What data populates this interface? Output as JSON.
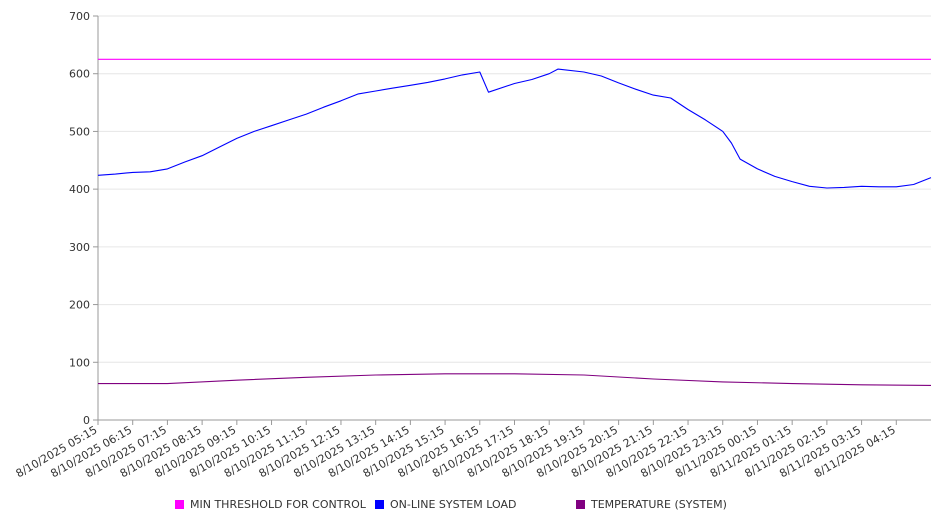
{
  "chart_data": {
    "type": "line",
    "title": "",
    "xlabel": "",
    "ylabel": "",
    "ylim": [
      0,
      700
    ],
    "y_ticks": [
      "0",
      "100",
      "200",
      "300",
      "400",
      "500",
      "600",
      "700"
    ],
    "x_tick_labels": [
      "8/10/2025 05:15",
      "8/10/2025 06:15",
      "8/10/2025 07:15",
      "8/10/2025 08:15",
      "8/10/2025 09:15",
      "8/10/2025 10:15",
      "8/10/2025 11:15",
      "8/10/2025 12:15",
      "8/10/2025 13:15",
      "8/10/2025 14:15",
      "8/10/2025 15:15",
      "8/10/2025 16:15",
      "8/10/2025 17:15",
      "8/10/2025 18:15",
      "8/10/2025 19:15",
      "8/10/2025 20:15",
      "8/10/2025 21:15",
      "8/10/2025 22:15",
      "8/10/2025 23:15",
      "8/11/2025 00:15",
      "8/11/2025 01:15",
      "8/11/2025 02:15",
      "8/11/2025 03:15",
      "8/11/2025 04:15"
    ],
    "grid": true,
    "legend_position": "bottom",
    "series": [
      {
        "name": "MIN THRESHOLD FOR CONTROL",
        "color": "#ff00ff",
        "points": [
          [
            "8/10/2025 05:15",
            625
          ],
          [
            "8/11/2025 05:15",
            625
          ]
        ]
      },
      {
        "name": "ON-LINE SYSTEM LOAD",
        "color": "#0000ff",
        "points": [
          [
            "8/10/2025 05:15",
            424
          ],
          [
            "8/10/2025 05:45",
            426
          ],
          [
            "8/10/2025 06:15",
            429
          ],
          [
            "8/10/2025 06:45",
            430
          ],
          [
            "8/10/2025 07:15",
            435
          ],
          [
            "8/10/2025 07:45",
            447
          ],
          [
            "8/10/2025 08:15",
            458
          ],
          [
            "8/10/2025 08:45",
            473
          ],
          [
            "8/10/2025 09:15",
            488
          ],
          [
            "8/10/2025 09:45",
            500
          ],
          [
            "8/10/2025 10:15",
            510
          ],
          [
            "8/10/2025 10:45",
            520
          ],
          [
            "8/10/2025 11:15",
            530
          ],
          [
            "8/10/2025 11:45",
            542
          ],
          [
            "8/10/2025 12:15",
            553
          ],
          [
            "8/10/2025 12:45",
            565
          ],
          [
            "8/10/2025 13:15",
            570
          ],
          [
            "8/10/2025 13:45",
            575
          ],
          [
            "8/10/2025 14:15",
            580
          ],
          [
            "8/10/2025 14:45",
            585
          ],
          [
            "8/10/2025 15:15",
            591
          ],
          [
            "8/10/2025 15:45",
            598
          ],
          [
            "8/10/2025 16:15",
            603
          ],
          [
            "8/10/2025 16:30",
            568
          ],
          [
            "8/10/2025 17:15",
            583
          ],
          [
            "8/10/2025 17:45",
            590
          ],
          [
            "8/10/2025 18:15",
            600
          ],
          [
            "8/10/2025 18:30",
            608
          ],
          [
            "8/10/2025 19:15",
            603
          ],
          [
            "8/10/2025 19:45",
            596
          ],
          [
            "8/10/2025 20:15",
            584
          ],
          [
            "8/10/2025 20:45",
            573
          ],
          [
            "8/10/2025 21:15",
            563
          ],
          [
            "8/10/2025 21:45",
            558
          ],
          [
            "8/10/2025 22:15",
            538
          ],
          [
            "8/10/2025 22:45",
            520
          ],
          [
            "8/10/2025 23:15",
            500
          ],
          [
            "8/10/2025 23:30",
            480
          ],
          [
            "8/10/2025 23:45",
            452
          ],
          [
            "8/11/2025 00:15",
            435
          ],
          [
            "8/11/2025 00:45",
            422
          ],
          [
            "8/11/2025 01:15",
            413
          ],
          [
            "8/11/2025 01:45",
            405
          ],
          [
            "8/11/2025 02:15",
            402
          ],
          [
            "8/11/2025 02:45",
            403
          ],
          [
            "8/11/2025 03:15",
            405
          ],
          [
            "8/11/2025 03:45",
            404
          ],
          [
            "8/11/2025 04:15",
            404
          ],
          [
            "8/11/2025 04:45",
            408
          ],
          [
            "8/11/2025 05:15",
            420
          ]
        ]
      },
      {
        "name": "TEMPERATURE (SYSTEM)",
        "color": "#800080",
        "points": [
          [
            "8/10/2025 05:15",
            63
          ],
          [
            "8/10/2025 07:15",
            63
          ],
          [
            "8/10/2025 09:15",
            69
          ],
          [
            "8/10/2025 11:15",
            74
          ],
          [
            "8/10/2025 13:15",
            78
          ],
          [
            "8/10/2025 15:15",
            80
          ],
          [
            "8/10/2025 17:15",
            80
          ],
          [
            "8/10/2025 19:15",
            78
          ],
          [
            "8/10/2025 21:15",
            71
          ],
          [
            "8/10/2025 23:15",
            66
          ],
          [
            "8/11/2025 01:15",
            63
          ],
          [
            "8/11/2025 03:15",
            61
          ],
          [
            "8/11/2025 05:15",
            60
          ]
        ]
      }
    ]
  }
}
